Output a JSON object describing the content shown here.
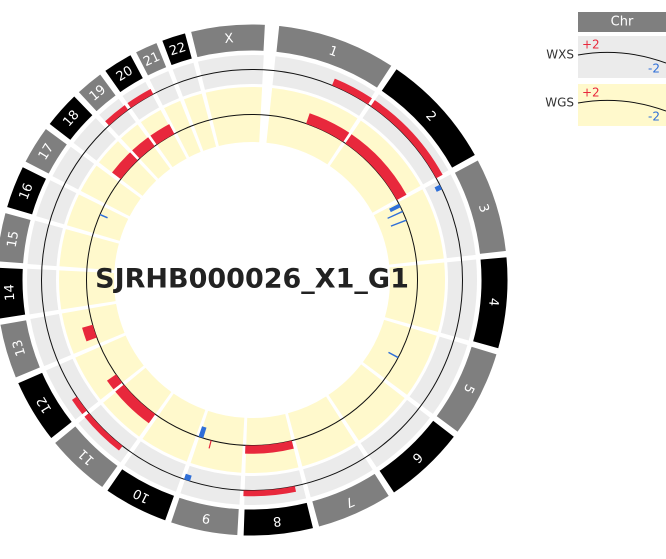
{
  "chart_data": {
    "type": "circos",
    "title": "SJRHB000026_X1_G1",
    "legend_title": "Chr",
    "chromosome_colors": [
      "#7f7f7f",
      "#000000"
    ],
    "gain_color": "#e8283c",
    "loss_color": "#2f6fd8",
    "chromosomes": [
      {
        "label": "1",
        "length": 249
      },
      {
        "label": "2",
        "length": 243
      },
      {
        "label": "3",
        "length": 198
      },
      {
        "label": "4",
        "length": 191
      },
      {
        "label": "5",
        "length": 181
      },
      {
        "label": "6",
        "length": 171
      },
      {
        "label": "7",
        "length": 159
      },
      {
        "label": "8",
        "length": 146
      },
      {
        "label": "9",
        "length": 141
      },
      {
        "label": "10",
        "length": 136
      },
      {
        "label": "11",
        "length": 135
      },
      {
        "label": "12",
        "length": 134
      },
      {
        "label": "13",
        "length": 115
      },
      {
        "label": "14",
        "length": 107
      },
      {
        "label": "15",
        "length": 103
      },
      {
        "label": "16",
        "length": 90
      },
      {
        "label": "17",
        "length": 81
      },
      {
        "label": "18",
        "length": 78
      },
      {
        "label": "19",
        "length": 59
      },
      {
        "label": "20",
        "length": 63
      },
      {
        "label": "21",
        "length": 48
      },
      {
        "label": "22",
        "length": 51
      },
      {
        "label": "X",
        "length": 155
      }
    ],
    "series": [
      {
        "name": "WXS",
        "color": "#ebebeb",
        "ylim": [
          -2,
          2
        ],
        "yticks": [
          {
            "value": 2,
            "label": "+2"
          },
          -2
        ],
        "segments": [
          {
            "chr": "1",
            "start": 150,
            "end": 249,
            "value": 1.0
          },
          {
            "chr": "2",
            "start": 0,
            "end": 243,
            "value": 1.0
          },
          {
            "chr": "3",
            "start": 10,
            "end": 20,
            "value": -0.8
          },
          {
            "chr": "8",
            "start": 20,
            "end": 146,
            "value": 0.8
          },
          {
            "chr": "9",
            "start": 128,
            "end": 141,
            "value": -0.8
          },
          {
            "chr": "11",
            "start": 20,
            "end": 135,
            "value": 0.8
          },
          {
            "chr": "12",
            "start": 0,
            "end": 40,
            "value": 0.8
          },
          {
            "chr": "19",
            "start": 0,
            "end": 59,
            "value": 0.8
          },
          {
            "chr": "20",
            "start": 0,
            "end": 63,
            "value": 0.8
          }
        ]
      },
      {
        "name": "WGS",
        "color": "#fff9cc",
        "ylim": [
          -2,
          2
        ],
        "yticks": [
          {
            "value": 2,
            "label": "+2"
          },
          -2
        ],
        "segments": [
          {
            "chr": "1",
            "start": 120,
            "end": 249,
            "value": 0.8
          },
          {
            "chr": "2",
            "start": 0,
            "end": 243,
            "value": 0.8
          },
          {
            "chr": "3",
            "start": 5,
            "end": 15,
            "value": -0.8
          },
          {
            "chr": "3",
            "start": 30,
            "end": 32,
            "value": -1.2
          },
          {
            "chr": "3",
            "start": 60,
            "end": 62,
            "value": -1.2
          },
          {
            "chr": "5",
            "start": 100,
            "end": 102,
            "value": -0.8
          },
          {
            "chr": "8",
            "start": 0,
            "end": 146,
            "value": 0.6
          },
          {
            "chr": "9",
            "start": 128,
            "end": 141,
            "value": -0.8
          },
          {
            "chr": "9",
            "start": 100,
            "end": 101,
            "value": 0.6
          },
          {
            "chr": "11",
            "start": 0,
            "end": 135,
            "value": 0.8
          },
          {
            "chr": "12",
            "start": 0,
            "end": 30,
            "value": 0.8
          },
          {
            "chr": "13",
            "start": 20,
            "end": 60,
            "value": 0.8
          },
          {
            "chr": "16",
            "start": 60,
            "end": 62,
            "value": -0.6
          },
          {
            "chr": "18",
            "start": 0,
            "end": 78,
            "value": 0.8
          },
          {
            "chr": "19",
            "start": 0,
            "end": 59,
            "value": 0.8
          },
          {
            "chr": "20",
            "start": 0,
            "end": 63,
            "value": 0.8
          }
        ]
      }
    ]
  }
}
